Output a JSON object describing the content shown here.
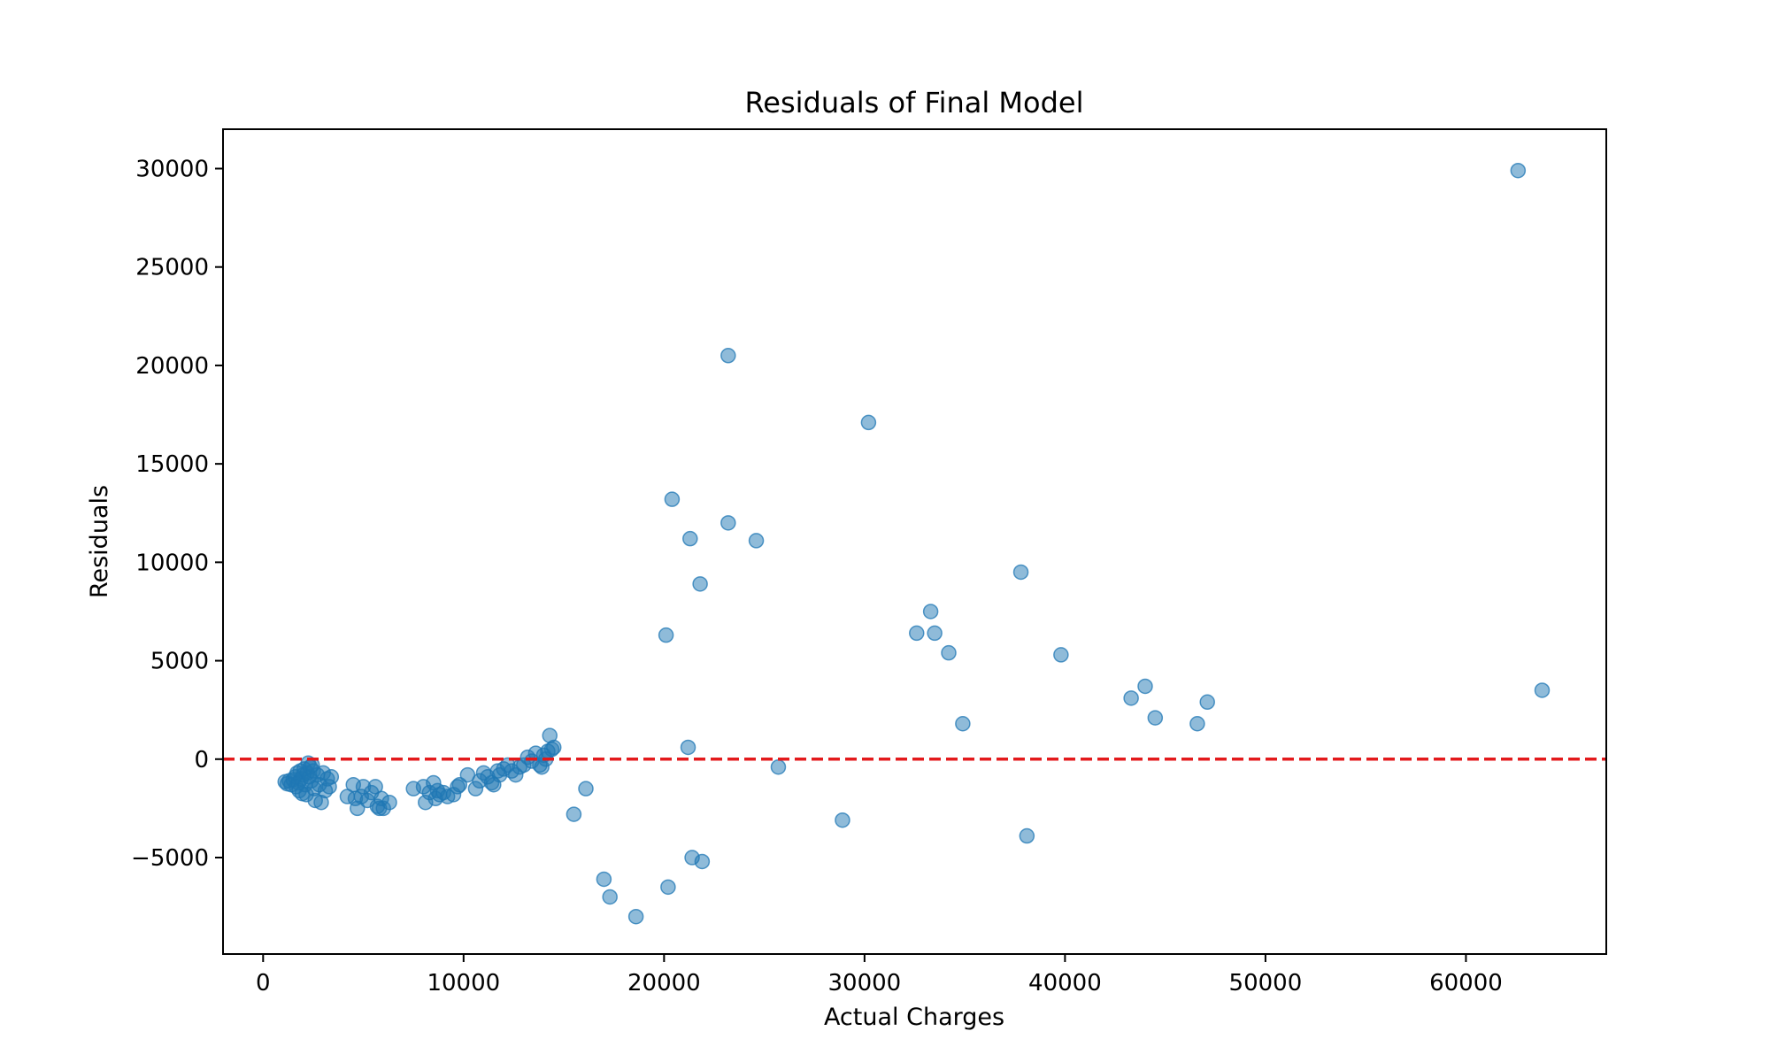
{
  "chart_data": {
    "type": "scatter",
    "title": "Residuals of Final Model",
    "xlabel": "Actual Charges",
    "ylabel": "Residuals",
    "xlim": [
      -2000,
      67000
    ],
    "ylim": [
      -9900,
      32000
    ],
    "xticks": [
      0,
      10000,
      20000,
      30000,
      40000,
      50000,
      60000
    ],
    "xtick_labels": [
      "0",
      "10000",
      "20000",
      "30000",
      "40000",
      "50000",
      "60000"
    ],
    "yticks": [
      -5000,
      0,
      5000,
      10000,
      15000,
      20000,
      25000,
      30000
    ],
    "ytick_labels": [
      "−5000",
      "0",
      "5000",
      "10000",
      "15000",
      "20000",
      "25000",
      "30000"
    ],
    "grid": false,
    "reference_line": {
      "y": 0,
      "style": "dashed",
      "color": "#e31a1c"
    },
    "marker_color": "#1f77b4",
    "marker_alpha": 0.5,
    "points": [
      [
        1100,
        -1150
      ],
      [
        1200,
        -1250
      ],
      [
        1300,
        -1100
      ],
      [
        1400,
        -1300
      ],
      [
        1500,
        -1050
      ],
      [
        1600,
        -900
      ],
      [
        1650,
        -1400
      ],
      [
        1700,
        -700
      ],
      [
        1750,
        -1200
      ],
      [
        1800,
        -1600
      ],
      [
        1850,
        -600
      ],
      [
        1900,
        -1000
      ],
      [
        1950,
        -1750
      ],
      [
        2000,
        -800
      ],
      [
        2050,
        -500
      ],
      [
        2100,
        -1300
      ],
      [
        2150,
        -1800
      ],
      [
        2200,
        -700
      ],
      [
        2250,
        -200
      ],
      [
        2300,
        -900
      ],
      [
        2350,
        -400
      ],
      [
        2400,
        -1100
      ],
      [
        2450,
        -300
      ],
      [
        2500,
        -600
      ],
      [
        2550,
        -1500
      ],
      [
        2600,
        -2100
      ],
      [
        2700,
        -800
      ],
      [
        2800,
        -1300
      ],
      [
        2900,
        -2200
      ],
      [
        3000,
        -700
      ],
      [
        3100,
        -1600
      ],
      [
        3200,
        -1000
      ],
      [
        3300,
        -1400
      ],
      [
        3400,
        -900
      ],
      [
        4200,
        -1900
      ],
      [
        4500,
        -1300
      ],
      [
        4600,
        -2000
      ],
      [
        4700,
        -2500
      ],
      [
        4900,
        -1900
      ],
      [
        5000,
        -1400
      ],
      [
        5200,
        -2100
      ],
      [
        5400,
        -1700
      ],
      [
        5600,
        -1400
      ],
      [
        5700,
        -2400
      ],
      [
        5800,
        -2500
      ],
      [
        5900,
        -2000
      ],
      [
        6000,
        -2500
      ],
      [
        6300,
        -2200
      ],
      [
        7500,
        -1500
      ],
      [
        8000,
        -1400
      ],
      [
        8100,
        -2200
      ],
      [
        8300,
        -1700
      ],
      [
        8500,
        -1200
      ],
      [
        8600,
        -2000
      ],
      [
        8700,
        -1600
      ],
      [
        8800,
        -1800
      ],
      [
        9000,
        -1700
      ],
      [
        9200,
        -1900
      ],
      [
        9500,
        -1800
      ],
      [
        9700,
        -1400
      ],
      [
        9800,
        -1300
      ],
      [
        10200,
        -800
      ],
      [
        10600,
        -1500
      ],
      [
        10800,
        -1100
      ],
      [
        11000,
        -700
      ],
      [
        11200,
        -900
      ],
      [
        11400,
        -1200
      ],
      [
        11500,
        -1300
      ],
      [
        11700,
        -600
      ],
      [
        11800,
        -800
      ],
      [
        12000,
        -500
      ],
      [
        12200,
        -300
      ],
      [
        12400,
        -600
      ],
      [
        12600,
        -800
      ],
      [
        12800,
        -400
      ],
      [
        13000,
        -300
      ],
      [
        13200,
        100
      ],
      [
        13400,
        -100
      ],
      [
        13600,
        300
      ],
      [
        13800,
        -300
      ],
      [
        13900,
        -400
      ],
      [
        14000,
        200
      ],
      [
        14100,
        0
      ],
      [
        14200,
        400
      ],
      [
        14300,
        1200
      ],
      [
        14400,
        500
      ],
      [
        14500,
        600
      ],
      [
        15500,
        -2800
      ],
      [
        16100,
        -1500
      ],
      [
        17000,
        -6100
      ],
      [
        17300,
        -7000
      ],
      [
        18600,
        -8000
      ],
      [
        20100,
        6300
      ],
      [
        20200,
        -6500
      ],
      [
        20400,
        13200
      ],
      [
        21200,
        600
      ],
      [
        21300,
        11200
      ],
      [
        21400,
        -5000
      ],
      [
        21800,
        8900
      ],
      [
        21900,
        -5200
      ],
      [
        23200,
        20500
      ],
      [
        23200,
        12000
      ],
      [
        24600,
        11100
      ],
      [
        25700,
        -400
      ],
      [
        28900,
        -3100
      ],
      [
        30200,
        17100
      ],
      [
        32600,
        6400
      ],
      [
        33300,
        7500
      ],
      [
        33500,
        6400
      ],
      [
        34200,
        5400
      ],
      [
        34900,
        1800
      ],
      [
        37800,
        9500
      ],
      [
        38100,
        -3900
      ],
      [
        39800,
        5300
      ],
      [
        43300,
        3100
      ],
      [
        44000,
        3700
      ],
      [
        44500,
        2100
      ],
      [
        46600,
        1800
      ],
      [
        47100,
        2900
      ],
      [
        62600,
        29900
      ],
      [
        63800,
        3500
      ]
    ]
  }
}
